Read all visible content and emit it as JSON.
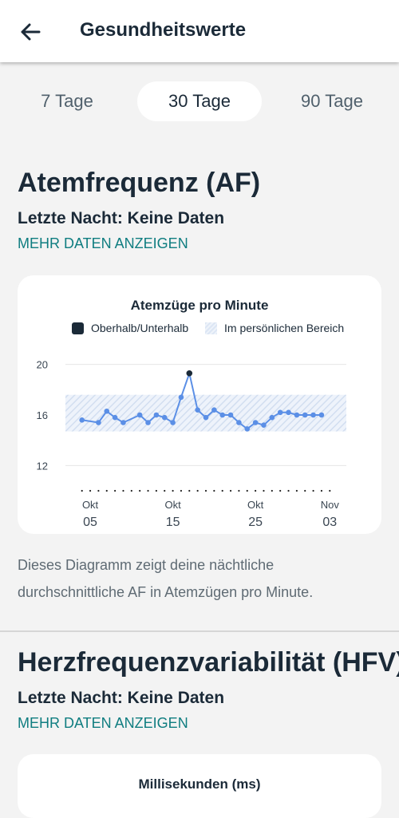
{
  "header": {
    "title": "Gesundheitswerte",
    "back_icon": "arrow-left-icon"
  },
  "tabs": [
    {
      "label": "7 Tage",
      "selected": false
    },
    {
      "label": "30 Tage",
      "selected": true
    },
    {
      "label": "90 Tage",
      "selected": false
    }
  ],
  "af_section": {
    "heading": "Atemfrequenz (AF)",
    "last_night": "Letzte Nacht: Keine Daten",
    "more_link": "MEHR DATEN ANZEIGEN",
    "card": {
      "title": "Atemzüge pro Minute",
      "legend_above_below": "Oberhalb/Unterhalb",
      "legend_range": "Im persönlichen Bereich"
    },
    "description": "Dieses Diagramm zeigt deine nächtliche durchschnittliche AF in Atemzügen pro Minute."
  },
  "hfv_section": {
    "heading": "Herzfrequenzvariabilität (HFV)",
    "last_night": "Letzte Nacht: Keine Daten",
    "more_link": "MEHR DATEN ANZEIGEN",
    "card": {
      "title": "Millisekunden (ms)"
    }
  },
  "colors": {
    "accent_link": "#0f7d80",
    "line": "#5b8fe6",
    "outlier": "#1b2a38"
  },
  "chart_data": {
    "type": "line",
    "title": "Atemzüge pro Minute",
    "ylim": [
      10,
      22
    ],
    "yticks": [
      12,
      16,
      20
    ],
    "xlim": [
      2,
      36
    ],
    "x_ticks": [
      {
        "x": 5,
        "month": "Okt",
        "day": "05"
      },
      {
        "x": 15,
        "month": "Okt",
        "day": "15"
      },
      {
        "x": 25,
        "month": "Okt",
        "day": "25"
      },
      {
        "x": 34,
        "month": "Nov",
        "day": "03"
      }
    ],
    "personal_range": [
      14.7,
      17.6
    ],
    "series": [
      {
        "x": [
          4,
          6,
          7,
          8,
          9,
          11,
          12,
          13,
          14,
          15,
          16,
          17,
          18,
          19,
          20,
          21,
          22,
          23,
          24,
          25,
          26,
          27,
          28,
          29,
          30,
          31,
          32,
          33
        ],
        "y": [
          15.6,
          15.4,
          16.3,
          15.8,
          15.4,
          16.0,
          15.4,
          16.0,
          15.8,
          15.4,
          17.4,
          19.3,
          16.4,
          15.8,
          16.4,
          16.0,
          16.0,
          15.4,
          14.9,
          15.4,
          15.2,
          15.8,
          16.2,
          16.2,
          16.0,
          16.0,
          16.0,
          16.0
        ],
        "outliers": [
          17
        ]
      }
    ]
  }
}
